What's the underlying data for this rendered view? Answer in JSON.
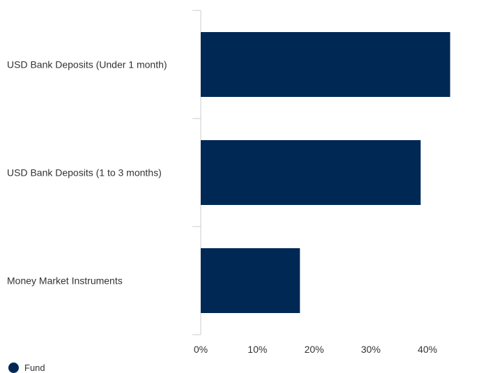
{
  "chart_data": {
    "type": "bar",
    "orientation": "horizontal",
    "categories": [
      "USD Bank Deposits (Under 1 month)",
      "USD Bank Deposits (1 to 3 months)",
      "Money Market Instruments"
    ],
    "series": [
      {
        "name": "Fund",
        "values": [
          44.0,
          38.8,
          17.5
        ],
        "color": "#002855"
      }
    ],
    "x_ticks": [
      "0%",
      "10%",
      "20%",
      "30%",
      "40%"
    ],
    "x_tick_values": [
      0,
      10,
      20,
      30,
      40
    ],
    "xlim": [
      0,
      50
    ],
    "title": "",
    "xlabel": "",
    "ylabel": "",
    "grid": false,
    "legend_position": "bottom-left",
    "axis_color": "#cccccc"
  },
  "legend": {
    "label": "Fund",
    "color": "#002855"
  }
}
